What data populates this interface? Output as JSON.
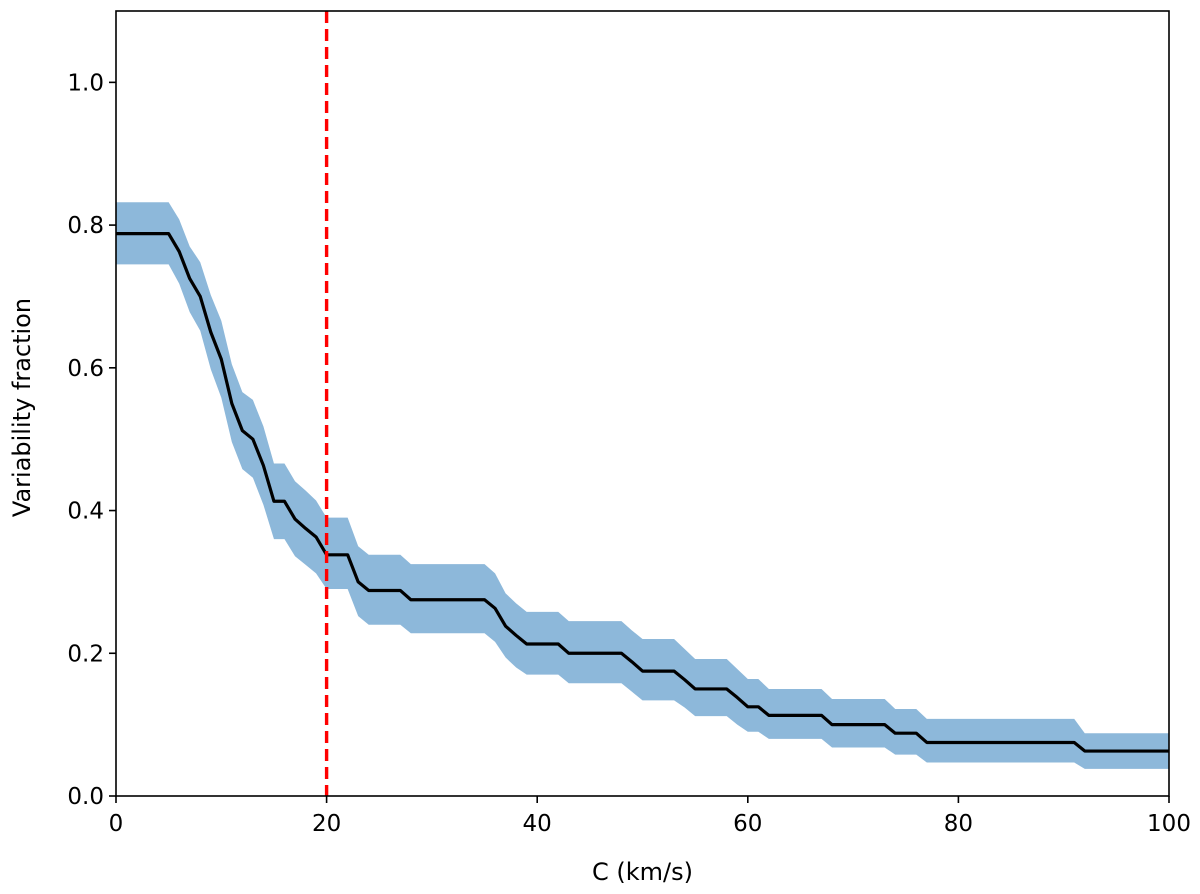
{
  "chart_data": {
    "type": "line",
    "title": "",
    "xlabel": "C (km/s)",
    "ylabel": "Variability fraction",
    "xlim": [
      0,
      100
    ],
    "ylim": [
      0,
      1.1
    ],
    "xticks": [
      0,
      20,
      40,
      60,
      80,
      100
    ],
    "yticks": [
      0.0,
      0.2,
      0.4,
      0.6,
      0.8,
      1.0
    ],
    "xtick_labels": [
      "0",
      "20",
      "40",
      "60",
      "80",
      "100"
    ],
    "ytick_labels": [
      "0.0",
      "0.2",
      "0.4",
      "0.6",
      "0.8",
      "1.0"
    ],
    "grid": false,
    "reference_line": {
      "orientation": "vertical",
      "x": 20,
      "style": "dashed",
      "color": "#ff0000"
    },
    "series": [
      {
        "name": "Variability fraction",
        "color": "#000000",
        "band_color": "#8db8da",
        "x": [
          0,
          5,
          6,
          7,
          8,
          9,
          10,
          11,
          12,
          13,
          14,
          15,
          16,
          17,
          18,
          19,
          20,
          21,
          22,
          23,
          24,
          27,
          28,
          35,
          36,
          37,
          38,
          39,
          42,
          43,
          48,
          49,
          50,
          53,
          54,
          55,
          56,
          58,
          59,
          60,
          61,
          62,
          67,
          68,
          73,
          74,
          76,
          77,
          91,
          92,
          100
        ],
        "y": [
          0.788,
          0.788,
          0.763,
          0.725,
          0.7,
          0.65,
          0.612,
          0.55,
          0.512,
          0.5,
          0.463,
          0.413,
          0.413,
          0.388,
          0.375,
          0.363,
          0.338,
          0.338,
          0.338,
          0.3,
          0.288,
          0.288,
          0.275,
          0.275,
          0.263,
          0.238,
          0.225,
          0.213,
          0.213,
          0.2,
          0.2,
          0.188,
          0.175,
          0.175,
          0.163,
          0.15,
          0.15,
          0.15,
          0.138,
          0.125,
          0.125,
          0.113,
          0.113,
          0.1,
          0.1,
          0.088,
          0.088,
          0.075,
          0.075,
          0.063,
          0.063
        ],
        "lower": [
          0.745,
          0.745,
          0.718,
          0.678,
          0.652,
          0.598,
          0.558,
          0.496,
          0.458,
          0.446,
          0.408,
          0.36,
          0.36,
          0.336,
          0.324,
          0.312,
          0.29,
          0.29,
          0.29,
          0.252,
          0.24,
          0.24,
          0.228,
          0.228,
          0.216,
          0.194,
          0.18,
          0.17,
          0.17,
          0.158,
          0.158,
          0.146,
          0.134,
          0.134,
          0.124,
          0.112,
          0.112,
          0.112,
          0.1,
          0.09,
          0.09,
          0.08,
          0.08,
          0.068,
          0.068,
          0.058,
          0.058,
          0.047,
          0.047,
          0.038,
          0.038
        ],
        "upper": [
          0.832,
          0.832,
          0.808,
          0.77,
          0.748,
          0.702,
          0.666,
          0.605,
          0.566,
          0.555,
          0.518,
          0.466,
          0.466,
          0.441,
          0.428,
          0.414,
          0.39,
          0.39,
          0.39,
          0.35,
          0.338,
          0.338,
          0.325,
          0.325,
          0.312,
          0.284,
          0.27,
          0.258,
          0.258,
          0.245,
          0.245,
          0.232,
          0.22,
          0.22,
          0.206,
          0.192,
          0.192,
          0.192,
          0.178,
          0.164,
          0.164,
          0.15,
          0.15,
          0.136,
          0.136,
          0.122,
          0.122,
          0.108,
          0.108,
          0.088,
          0.088
        ]
      }
    ]
  }
}
